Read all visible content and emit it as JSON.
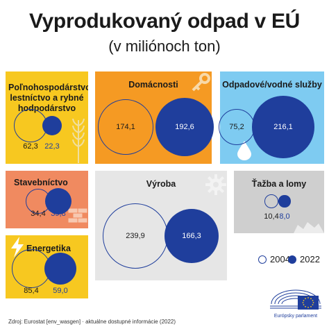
{
  "title": "Vyprodukovaný odpad v EÚ",
  "subtitle": "(v miliónoch ton)",
  "legend": {
    "year_a": "2004",
    "year_b": "2022"
  },
  "source": "Zdroj: Eurostat [env_wasgen] · aktuálne dostupné informácie (2022)",
  "logo_text": "Európsky parlament",
  "colors": {
    "outline_circle": "#1f3e9c",
    "filled_circle": "#1f3e9c"
  },
  "chart_data": {
    "type": "bubble",
    "title": "Vyprodukovaný odpad v EÚ",
    "subtitle": "(v miliónoch ton)",
    "series": [
      {
        "name": "2004",
        "style": "outline"
      },
      {
        "name": "2022",
        "style": "filled"
      }
    ],
    "categories": [
      {
        "label": "Poľnohospodárstvo, lestníctvo a rybné hodpodárstvo",
        "values": {
          "2004": "62,3",
          "2022": "22,3"
        },
        "numeric": [
          62.3,
          22.3
        ],
        "panel_color": "#f7c820",
        "icon": "wheat-icon"
      },
      {
        "label": "Domácnosti",
        "values": {
          "2004": "174,1",
          "2022": "192,6"
        },
        "numeric": [
          174.1,
          192.6
        ],
        "panel_color": "#f59a23",
        "icon": "key-icon"
      },
      {
        "label": "Odpadové/vodné služby",
        "values": {
          "2004": "75,2",
          "2022": "216,1"
        },
        "numeric": [
          75.2,
          216.1
        ],
        "panel_color": "#7ecbf1",
        "icon": "water-drop-icon"
      },
      {
        "label": "Stavebníctvo",
        "values": {
          "2004": "34,4",
          "2022": "39,8"
        },
        "numeric": [
          34.4,
          39.8
        ],
        "panel_color": "#f08a60",
        "icon": "bricks-icon"
      },
      {
        "label": "Výroba",
        "values": {
          "2004": "239,9",
          "2022": "166,3"
        },
        "numeric": [
          239.9,
          166.3
        ],
        "panel_color": "#e6e6e6",
        "icon": "gear-icon"
      },
      {
        "label": "Ťažba a lomy",
        "values": {
          "2004": "10,4",
          "2022": "8,0"
        },
        "numeric": [
          10.4,
          8.0
        ],
        "panel_color": "#cfcfcf",
        "icon": "rocks-icon"
      },
      {
        "label": "Energetika",
        "values": {
          "2004": "85,4",
          "2022": "59,0"
        },
        "numeric": [
          85.4,
          59.0
        ],
        "panel_color": "#f7c820",
        "icon": "lightning-icon"
      }
    ]
  }
}
